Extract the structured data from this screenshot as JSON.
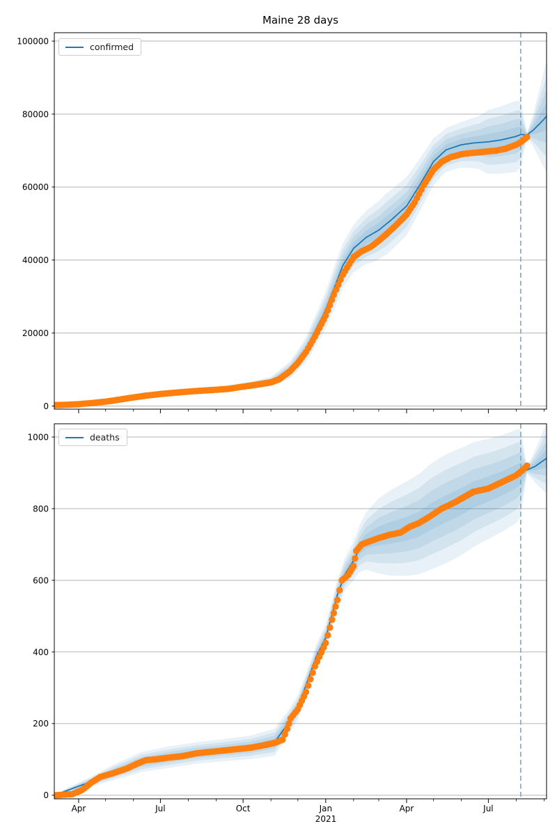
{
  "title": "Maine 28 days",
  "colors": {
    "actual": "#ff7f0e",
    "fit": "#1f77b4",
    "band": "#1f77b4",
    "band_layer_alpha": 0.1,
    "forecast_line": "#74a9cf",
    "grid": "#b3b3b3",
    "spine": "#000000",
    "text": "#000000"
  },
  "x_axis": {
    "major_ticks": [
      {
        "date": "2020-04-01",
        "label": "Apr"
      },
      {
        "date": "2020-07-01",
        "label": "Jul"
      },
      {
        "date": "2020-10-01",
        "label": "Oct"
      },
      {
        "date": "2021-01-01",
        "label": "Jan"
      },
      {
        "date": "2021-04-01",
        "label": "Apr"
      },
      {
        "date": "2021-07-01",
        "label": "Jul"
      }
    ],
    "minor_tick_dates": [
      "2020-05-01",
      "2020-06-01",
      "2020-08-01",
      "2020-09-01",
      "2020-11-01",
      "2020-12-01",
      "2021-02-01",
      "2021-03-01",
      "2021-05-01",
      "2021-06-01",
      "2021-08-01",
      "2021-09-01"
    ],
    "range": [
      "2020-03-05",
      "2021-09-04"
    ],
    "year_label": "2021",
    "year_under_date": "2021-01-01"
  },
  "chart_data": [
    {
      "type": "line",
      "subtype": "forecast-fan",
      "name": "confirmed",
      "legend_label": "confirmed",
      "ylim": [
        -860,
        102300
      ],
      "yticks": [
        0,
        20000,
        40000,
        60000,
        80000,
        100000
      ],
      "grid": true,
      "legend_position": "upper left",
      "show_x_labels": false,
      "forecast_start": "2021-08-06",
      "band_fractions": [
        1.0,
        0.72,
        0.48,
        0.25
      ],
      "series": {
        "actual": [
          [
            "2020-03-06",
            250
          ],
          [
            "2020-03-20",
            350
          ],
          [
            "2020-04-01",
            500
          ],
          [
            "2020-04-15",
            800
          ],
          [
            "2020-05-01",
            1200
          ],
          [
            "2020-05-15",
            1700
          ],
          [
            "2020-06-01",
            2350
          ],
          [
            "2020-06-15",
            2850
          ],
          [
            "2020-07-01",
            3300
          ],
          [
            "2020-07-15",
            3600
          ],
          [
            "2020-08-01",
            3950
          ],
          [
            "2020-08-15",
            4200
          ],
          [
            "2020-09-01",
            4450
          ],
          [
            "2020-09-15",
            4700
          ],
          [
            "2020-10-01",
            5300
          ],
          [
            "2020-10-15",
            5800
          ],
          [
            "2020-11-01",
            6500
          ],
          [
            "2020-11-10",
            7300
          ],
          [
            "2020-11-22",
            9500
          ],
          [
            "2020-12-01",
            11800
          ],
          [
            "2020-12-10",
            14800
          ],
          [
            "2020-12-20",
            19000
          ],
          [
            "2021-01-01",
            24800
          ],
          [
            "2021-01-10",
            30500
          ],
          [
            "2021-01-20",
            36000
          ],
          [
            "2021-02-01",
            40800
          ],
          [
            "2021-02-10",
            42400
          ],
          [
            "2021-02-20",
            43600
          ],
          [
            "2021-03-01",
            45300
          ],
          [
            "2021-03-10",
            47200
          ],
          [
            "2021-03-20",
            49500
          ],
          [
            "2021-04-01",
            52500
          ],
          [
            "2021-04-10",
            55800
          ],
          [
            "2021-04-20",
            60500
          ],
          [
            "2021-05-01",
            64800
          ],
          [
            "2021-05-10",
            66900
          ],
          [
            "2021-05-20",
            68200
          ],
          [
            "2021-06-01",
            69000
          ],
          [
            "2021-06-10",
            69300
          ],
          [
            "2021-06-20",
            69500
          ],
          [
            "2021-07-01",
            69800
          ],
          [
            "2021-07-10",
            70000
          ],
          [
            "2021-07-20",
            70500
          ],
          [
            "2021-08-01",
            71600
          ],
          [
            "2021-08-06",
            72300
          ],
          [
            "2021-08-13",
            73700
          ]
        ],
        "fit": [
          [
            "2020-03-06",
            150
          ],
          [
            "2020-05-01",
            1300
          ],
          [
            "2020-07-01",
            3400
          ],
          [
            "2020-09-01",
            4600
          ],
          [
            "2020-10-01",
            5400
          ],
          [
            "2020-11-01",
            6700
          ],
          [
            "2020-11-22",
            9800
          ],
          [
            "2020-12-10",
            15400
          ],
          [
            "2021-01-01",
            26300
          ],
          [
            "2021-01-20",
            38500
          ],
          [
            "2021-02-01",
            43200
          ],
          [
            "2021-02-15",
            46200
          ],
          [
            "2021-03-01",
            48200
          ],
          [
            "2021-03-15",
            51000
          ],
          [
            "2021-04-01",
            54800
          ],
          [
            "2021-04-15",
            60300
          ],
          [
            "2021-05-01",
            67000
          ],
          [
            "2021-05-15",
            70200
          ],
          [
            "2021-06-01",
            71600
          ],
          [
            "2021-06-15",
            72100
          ],
          [
            "2021-07-01",
            72400
          ],
          [
            "2021-07-15",
            72900
          ],
          [
            "2021-08-01",
            73900
          ],
          [
            "2021-08-06",
            74400
          ],
          [
            "2021-08-13",
            74300
          ],
          [
            "2021-08-20",
            75600
          ],
          [
            "2021-09-01",
            78600
          ],
          [
            "2021-09-04",
            79500
          ]
        ],
        "band_halfwidth": [
          [
            "2020-03-06",
            200
          ],
          [
            "2020-05-01",
            450
          ],
          [
            "2020-07-01",
            550
          ],
          [
            "2020-09-01",
            750
          ],
          [
            "2020-10-01",
            950
          ],
          [
            "2020-11-01",
            1300
          ],
          [
            "2020-12-01",
            2800
          ],
          [
            "2020-12-20",
            4200
          ],
          [
            "2021-01-10",
            5800
          ],
          [
            "2021-02-01",
            6500
          ],
          [
            "2021-02-20",
            7600
          ],
          [
            "2021-03-10",
            8400
          ],
          [
            "2021-04-01",
            8000
          ],
          [
            "2021-04-20",
            7000
          ],
          [
            "2021-05-10",
            6000
          ],
          [
            "2021-06-01",
            6200
          ],
          [
            "2021-06-20",
            7200
          ],
          [
            "2021-07-01",
            8800
          ],
          [
            "2021-07-15",
            9200
          ],
          [
            "2021-08-01",
            9800
          ],
          [
            "2021-08-06",
            9000
          ],
          [
            "2021-08-13",
            600
          ],
          [
            "2021-08-20",
            4500
          ],
          [
            "2021-09-04",
            15500
          ]
        ]
      }
    },
    {
      "type": "line",
      "subtype": "forecast-fan",
      "name": "deaths",
      "legend_label": "deaths",
      "ylim": [
        -10,
        1037
      ],
      "yticks": [
        0,
        200,
        400,
        600,
        800,
        1000
      ],
      "grid": true,
      "legend_position": "upper left",
      "show_x_labels": true,
      "forecast_start": "2021-08-06",
      "band_fractions": [
        1.0,
        0.72,
        0.48,
        0.25
      ],
      "series": {
        "actual": [
          [
            "2020-03-06",
            0
          ],
          [
            "2020-03-25",
            3
          ],
          [
            "2020-04-05",
            15
          ],
          [
            "2020-04-15",
            35
          ],
          [
            "2020-04-25",
            51
          ],
          [
            "2020-05-10",
            62
          ],
          [
            "2020-05-25",
            75
          ],
          [
            "2020-06-05",
            88
          ],
          [
            "2020-06-15",
            98
          ],
          [
            "2020-06-25",
            100
          ],
          [
            "2020-07-10",
            105
          ],
          [
            "2020-07-25",
            109
          ],
          [
            "2020-08-10",
            117
          ],
          [
            "2020-08-25",
            121
          ],
          [
            "2020-09-10",
            125
          ],
          [
            "2020-09-25",
            129
          ],
          [
            "2020-10-10",
            133
          ],
          [
            "2020-10-25",
            140
          ],
          [
            "2020-11-05",
            146
          ],
          [
            "2020-11-14",
            155
          ],
          [
            "2020-11-19",
            185
          ],
          [
            "2020-11-23",
            215
          ],
          [
            "2020-12-01",
            240
          ],
          [
            "2020-12-10",
            288
          ],
          [
            "2020-12-20",
            360
          ],
          [
            "2021-01-01",
            425
          ],
          [
            "2021-01-08",
            490
          ],
          [
            "2021-01-14",
            545
          ],
          [
            "2021-01-19",
            600
          ],
          [
            "2021-01-26",
            615
          ],
          [
            "2021-02-01",
            640
          ],
          [
            "2021-02-04",
            682
          ],
          [
            "2021-02-10",
            700
          ],
          [
            "2021-02-18",
            708
          ],
          [
            "2021-03-01",
            718
          ],
          [
            "2021-03-13",
            727
          ],
          [
            "2021-03-25",
            733
          ],
          [
            "2021-04-05",
            750
          ],
          [
            "2021-04-15",
            760
          ],
          [
            "2021-04-28",
            780
          ],
          [
            "2021-05-10",
            800
          ],
          [
            "2021-05-25",
            818
          ],
          [
            "2021-06-14",
            847
          ],
          [
            "2021-07-01",
            856
          ],
          [
            "2021-07-16",
            874
          ],
          [
            "2021-08-01",
            893
          ],
          [
            "2021-08-08",
            907
          ],
          [
            "2021-08-13",
            920
          ]
        ],
        "fit": [
          [
            "2020-03-06",
            1
          ],
          [
            "2020-04-15",
            38
          ],
          [
            "2020-05-10",
            64
          ],
          [
            "2020-06-10",
            93
          ],
          [
            "2020-07-10",
            106
          ],
          [
            "2020-08-10",
            118
          ],
          [
            "2020-09-10",
            126
          ],
          [
            "2020-10-10",
            134
          ],
          [
            "2020-11-05",
            148
          ],
          [
            "2020-11-20",
            200
          ],
          [
            "2020-12-01",
            245
          ],
          [
            "2020-12-22",
            390
          ],
          [
            "2021-01-01",
            440
          ],
          [
            "2021-01-14",
            560
          ],
          [
            "2021-01-22",
            615
          ],
          [
            "2021-02-01",
            655
          ],
          [
            "2021-02-08",
            690
          ],
          [
            "2021-02-15",
            710
          ],
          [
            "2021-03-01",
            724
          ],
          [
            "2021-03-15",
            733
          ],
          [
            "2021-04-01",
            744
          ],
          [
            "2021-04-15",
            757
          ],
          [
            "2021-04-28",
            778
          ],
          [
            "2021-05-15",
            800
          ],
          [
            "2021-06-01",
            820
          ],
          [
            "2021-06-15",
            840
          ],
          [
            "2021-07-01",
            855
          ],
          [
            "2021-07-16",
            870
          ],
          [
            "2021-08-01",
            890
          ],
          [
            "2021-08-08",
            903
          ],
          [
            "2021-08-13",
            908
          ],
          [
            "2021-08-22",
            918
          ],
          [
            "2021-09-04",
            941
          ]
        ],
        "band_halfwidth": [
          [
            "2020-03-06",
            3
          ],
          [
            "2020-04-15",
            14
          ],
          [
            "2020-05-10",
            22
          ],
          [
            "2020-06-10",
            28
          ],
          [
            "2020-07-10",
            30
          ],
          [
            "2020-08-10",
            30
          ],
          [
            "2020-09-10",
            31
          ],
          [
            "2020-10-10",
            33
          ],
          [
            "2020-11-05",
            38
          ],
          [
            "2020-11-20",
            36
          ],
          [
            "2020-12-10",
            32
          ],
          [
            "2020-12-22",
            34
          ],
          [
            "2021-01-10",
            40
          ],
          [
            "2021-01-27",
            48
          ],
          [
            "2021-02-05",
            60
          ],
          [
            "2021-02-15",
            80
          ],
          [
            "2021-03-01",
            105
          ],
          [
            "2021-03-15",
            120
          ],
          [
            "2021-04-01",
            132
          ],
          [
            "2021-04-15",
            140
          ],
          [
            "2021-04-28",
            148
          ],
          [
            "2021-05-15",
            152
          ],
          [
            "2021-06-01",
            150
          ],
          [
            "2021-06-15",
            146
          ],
          [
            "2021-07-01",
            140
          ],
          [
            "2021-07-16",
            135
          ],
          [
            "2021-08-01",
            130
          ],
          [
            "2021-08-06",
            122
          ],
          [
            "2021-08-13",
            10
          ],
          [
            "2021-08-22",
            45
          ],
          [
            "2021-09-04",
            100
          ]
        ]
      }
    }
  ]
}
